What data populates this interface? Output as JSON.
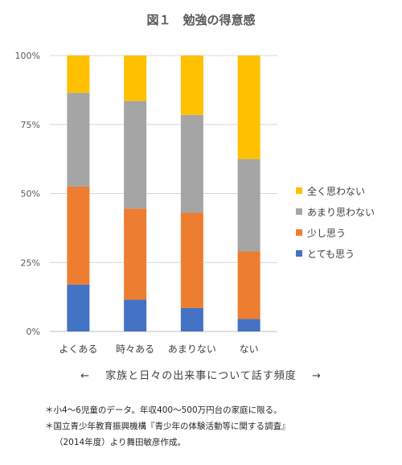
{
  "chart_data": {
    "type": "bar",
    "stacked": true,
    "title": "図１　勉強の得意感",
    "categories": [
      "よくある",
      "時々ある",
      "あまりない",
      "ない"
    ],
    "series": [
      {
        "name": "とても思う",
        "color": "#4472C4",
        "values": [
          17,
          11.5,
          8.5,
          4.5
        ]
      },
      {
        "name": "少し思う",
        "color": "#ED7D31",
        "values": [
          35.5,
          33,
          34.5,
          24.5
        ]
      },
      {
        "name": "あまり思わない",
        "color": "#A5A5A5",
        "values": [
          34,
          39,
          35.5,
          33.5
        ]
      },
      {
        "name": "全く思わない",
        "color": "#FFC000",
        "values": [
          13.5,
          16.5,
          21.5,
          37.5
        ]
      }
    ],
    "legend_order": [
      "全く思わない",
      "あまり思わない",
      "少し思う",
      "とても思う"
    ],
    "ylim": [
      0,
      100
    ],
    "yticks": [
      "0%",
      "25%",
      "50%",
      "75%",
      "100%"
    ],
    "grid": true,
    "legend_position": "right"
  },
  "xaxis_caption": {
    "left_arrow": "←",
    "text": "家族と日々の出来事について話す頻度",
    "right_arrow": "→"
  },
  "notes": [
    "＊小4～6児童のデータ。年収400～500万円台の家庭に限る。",
    "＊国立青少年教育振興機構『青少年の体験活動等に関する調査』",
    "（2014年度）より舞田敏彦作成。"
  ]
}
